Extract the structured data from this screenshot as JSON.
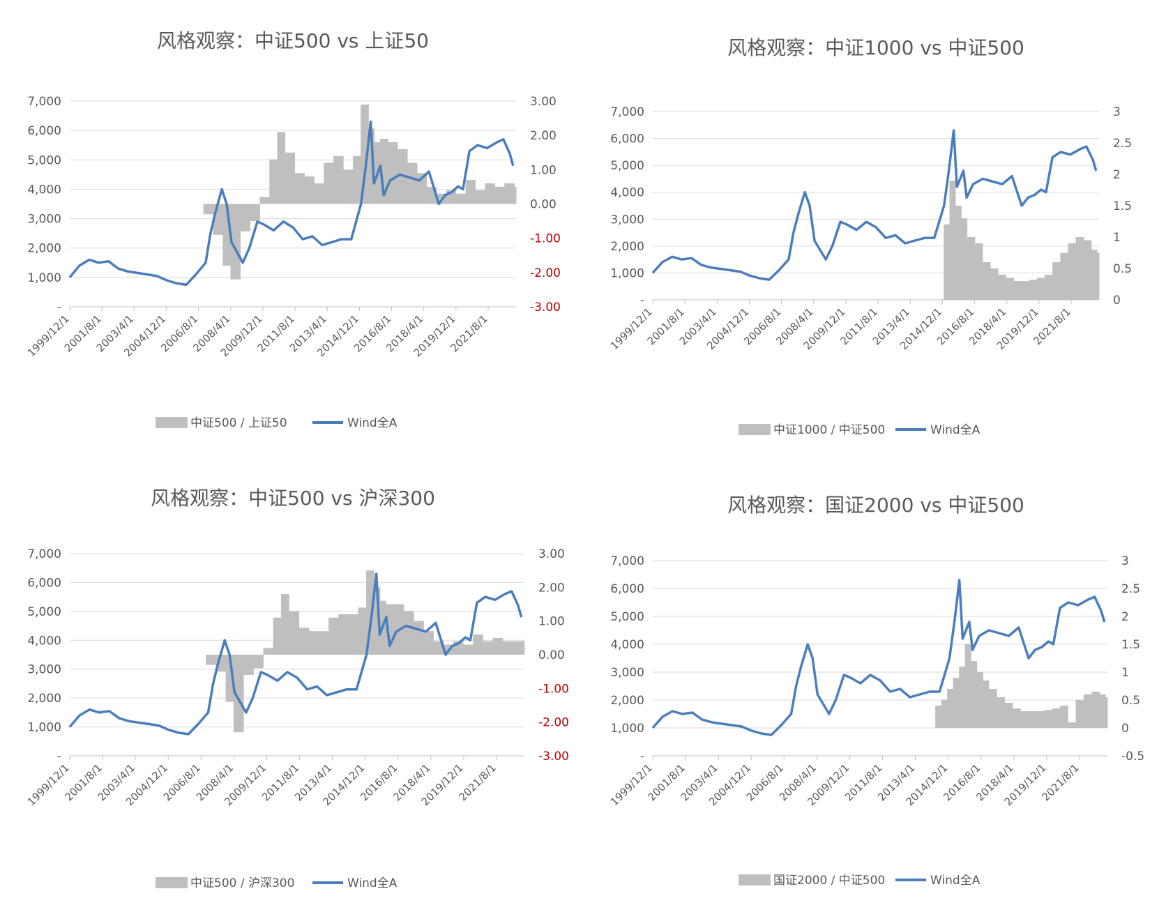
{
  "colors": {
    "line": "#4a7ebb",
    "bars": "#bfbfbf",
    "grid": "#d9d9d9",
    "text": "#595959",
    "negative_axis": "#c00000"
  },
  "x_labels": [
    "1999/12/1",
    "2001/8/1",
    "2003/4/1",
    "2004/12/1",
    "2006/8/1",
    "2008/4/1",
    "2009/12/1",
    "2011/8/1",
    "2013/4/1",
    "2014/12/1",
    "2016/8/1",
    "2018/4/1",
    "2019/12/1",
    "2021/8/1"
  ],
  "wind_all_a": {
    "dates": [
      "1999/12",
      "2000/6",
      "2000/12",
      "2001/6",
      "2001/12",
      "2002/6",
      "2002/12",
      "2003/6",
      "2003/12",
      "2004/6",
      "2004/12",
      "2005/6",
      "2005/12",
      "2006/6",
      "2006/12",
      "2007/3",
      "2007/6",
      "2007/10",
      "2008/1",
      "2008/4",
      "2008/8",
      "2008/11",
      "2009/3",
      "2009/8",
      "2009/12",
      "2010/6",
      "2010/12",
      "2011/6",
      "2011/12",
      "2012/6",
      "2012/12",
      "2013/6",
      "2013/12",
      "2014/6",
      "2014/12",
      "2015/3",
      "2015/6",
      "2015/8",
      "2015/12",
      "2016/2",
      "2016/6",
      "2016/12",
      "2017/6",
      "2017/12",
      "2018/6",
      "2018/12",
      "2019/4",
      "2019/8",
      "2019/12",
      "2020/3",
      "2020/7",
      "2020/12",
      "2021/6",
      "2021/12",
      "2022/4",
      "2022/8",
      "2022/10"
    ],
    "values": [
      1000,
      1400,
      1600,
      1500,
      1550,
      1300,
      1200,
      1150,
      1100,
      1050,
      900,
      800,
      750,
      1100,
      1500,
      2500,
      3200,
      4000,
      3500,
      2200,
      1800,
      1500,
      2000,
      2900,
      2800,
      2600,
      2900,
      2700,
      2300,
      2400,
      2100,
      2200,
      2300,
      2300,
      3500,
      4800,
      6300,
      4200,
      4800,
      3800,
      4300,
      4500,
      4400,
      4300,
      4600,
      3500,
      3800,
      3900,
      4100,
      4000,
      5300,
      5500,
      5400,
      5600,
      5700,
      5200,
      4800
    ]
  },
  "charts": [
    {
      "title": "风格观察：中证500 vs 上证50",
      "type": "bar+line",
      "left_axis": {
        "ticks": [
          "7,000",
          "6,000",
          "5,000",
          "4,000",
          "3,000",
          "2,000",
          "1,000",
          "-"
        ],
        "range": [
          0,
          7000
        ]
      },
      "right_axis": {
        "ticks": [
          "3.00",
          "2.00",
          "1.00",
          "0.00",
          "-1.00",
          "-2.00",
          "-3.00"
        ],
        "range": [
          -3,
          3
        ],
        "negative_red": true
      },
      "legend": {
        "bar": "中证500 / 上证50",
        "line": "Wind全A"
      },
      "bar_series": {
        "x": [
          2006.8,
          2007.3,
          2007.8,
          2008.2,
          2008.7,
          2009.2,
          2009.7,
          2010.2,
          2010.6,
          2011.0,
          2011.5,
          2012.0,
          2012.5,
          2013.0,
          2013.5,
          2014.0,
          2014.5,
          2014.9,
          2015.3,
          2015.6,
          2015.9,
          2016.3,
          2016.8,
          2017.3,
          2017.8,
          2018.3,
          2018.8,
          2019.3,
          2019.8,
          2020.3,
          2020.8,
          2021.3,
          2021.8,
          2022.3,
          2022.8
        ],
        "values": [
          -0.3,
          -0.9,
          -1.8,
          -2.2,
          -0.8,
          -0.5,
          0.2,
          1.3,
          2.1,
          1.5,
          0.9,
          0.8,
          0.6,
          1.2,
          1.4,
          1.0,
          1.4,
          2.9,
          2.2,
          1.8,
          1.9,
          1.8,
          1.6,
          1.2,
          0.9,
          0.5,
          0.3,
          0.4,
          0.3,
          0.7,
          0.4,
          0.6,
          0.5,
          0.6,
          0.5
        ]
      }
    },
    {
      "title": "风格观察：中证1000 vs 中证500",
      "type": "bar+line",
      "left_axis": {
        "ticks": [
          "7,000",
          "6,000",
          "5,000",
          "4,000",
          "3,000",
          "2,000",
          "1,000",
          "-"
        ],
        "range": [
          0,
          7000
        ]
      },
      "right_axis": {
        "ticks": [
          "3",
          "2.5",
          "2",
          "1.5",
          "1",
          "0.5",
          "0"
        ],
        "range": [
          0,
          3
        ],
        "negative_red": false
      },
      "legend": {
        "bar": "中证1000 / 中证500",
        "line": "Wind全A"
      },
      "bar_series": {
        "x": [
          2014.9,
          2015.2,
          2015.5,
          2015.8,
          2016.1,
          2016.5,
          2016.9,
          2017.3,
          2017.7,
          2018.1,
          2018.5,
          2018.9,
          2019.3,
          2019.7,
          2020.1,
          2020.5,
          2020.9,
          2021.3,
          2021.7,
          2022.1,
          2022.5,
          2022.8
        ],
        "values": [
          1.2,
          1.9,
          1.5,
          1.3,
          1.0,
          0.9,
          0.6,
          0.5,
          0.4,
          0.35,
          0.3,
          0.3,
          0.32,
          0.35,
          0.4,
          0.6,
          0.75,
          0.9,
          1.0,
          0.95,
          0.8,
          0.75
        ]
      }
    },
    {
      "title": "风格观察：中证500 vs 沪深300",
      "type": "bar+line",
      "left_axis": {
        "ticks": [
          "7,000",
          "6,000",
          "5,000",
          "4,000",
          "3,000",
          "2,000",
          "1,000",
          "-"
        ],
        "range": [
          0,
          7000
        ]
      },
      "right_axis": {
        "ticks": [
          "3.00",
          "2.00",
          "1.00",
          "0.00",
          "-1.00",
          "-2.00",
          "-3.00"
        ],
        "range": [
          -3,
          3
        ],
        "negative_red": true
      },
      "legend": {
        "bar": "中证500 / 沪深300",
        "line": "Wind全A"
      },
      "bar_series": {
        "x": [
          2006.8,
          2007.3,
          2007.8,
          2008.2,
          2008.7,
          2009.2,
          2009.7,
          2010.2,
          2010.6,
          2011.0,
          2011.5,
          2012.0,
          2012.5,
          2013.0,
          2013.5,
          2014.0,
          2014.5,
          2014.9,
          2015.3,
          2015.6,
          2015.9,
          2016.3,
          2016.8,
          2017.3,
          2017.8,
          2018.3,
          2018.8,
          2019.3,
          2019.8,
          2020.3,
          2020.8,
          2021.3,
          2021.8,
          2022.3,
          2022.8
        ],
        "values": [
          -0.3,
          -0.5,
          -1.4,
          -2.3,
          -0.6,
          -0.4,
          0.2,
          1.1,
          1.8,
          1.3,
          0.8,
          0.7,
          0.7,
          1.1,
          1.2,
          1.2,
          1.4,
          2.5,
          2.0,
          1.6,
          1.5,
          1.5,
          1.3,
          1.0,
          0.7,
          0.4,
          0.3,
          0.4,
          0.3,
          0.6,
          0.4,
          0.5,
          0.4,
          0.4,
          0.4
        ]
      }
    },
    {
      "title": "风格观察：国证2000 vs 中证500",
      "type": "bar+line",
      "left_axis": {
        "ticks": [
          "7,000",
          "6,000",
          "5,000",
          "4,000",
          "3,000",
          "2,000",
          "1,000",
          "-"
        ],
        "range": [
          0,
          7000
        ]
      },
      "right_axis": {
        "ticks": [
          "3",
          "2.5",
          "2",
          "1.5",
          "1",
          "0.5",
          "0",
          "-0.5"
        ],
        "range": [
          -0.5,
          3
        ],
        "negative_red": false
      },
      "legend": {
        "bar": "国证2000 / 中证500",
        "line": "Wind全A"
      },
      "bar_series": {
        "x": [
          2014.2,
          2014.5,
          2014.8,
          2015.1,
          2015.4,
          2015.7,
          2016.0,
          2016.3,
          2016.6,
          2016.9,
          2017.3,
          2017.7,
          2018.1,
          2018.5,
          2018.9,
          2019.3,
          2019.7,
          2020.1,
          2020.5,
          2020.9,
          2021.3,
          2021.7,
          2022.1,
          2022.5,
          2022.8
        ],
        "values": [
          0.4,
          0.5,
          0.7,
          0.9,
          1.1,
          1.5,
          1.2,
          1.0,
          0.85,
          0.7,
          0.55,
          0.45,
          0.35,
          0.3,
          0.3,
          0.3,
          0.32,
          0.35,
          0.4,
          0.1,
          0.5,
          0.6,
          0.65,
          0.6,
          0.55
        ]
      }
    }
  ]
}
